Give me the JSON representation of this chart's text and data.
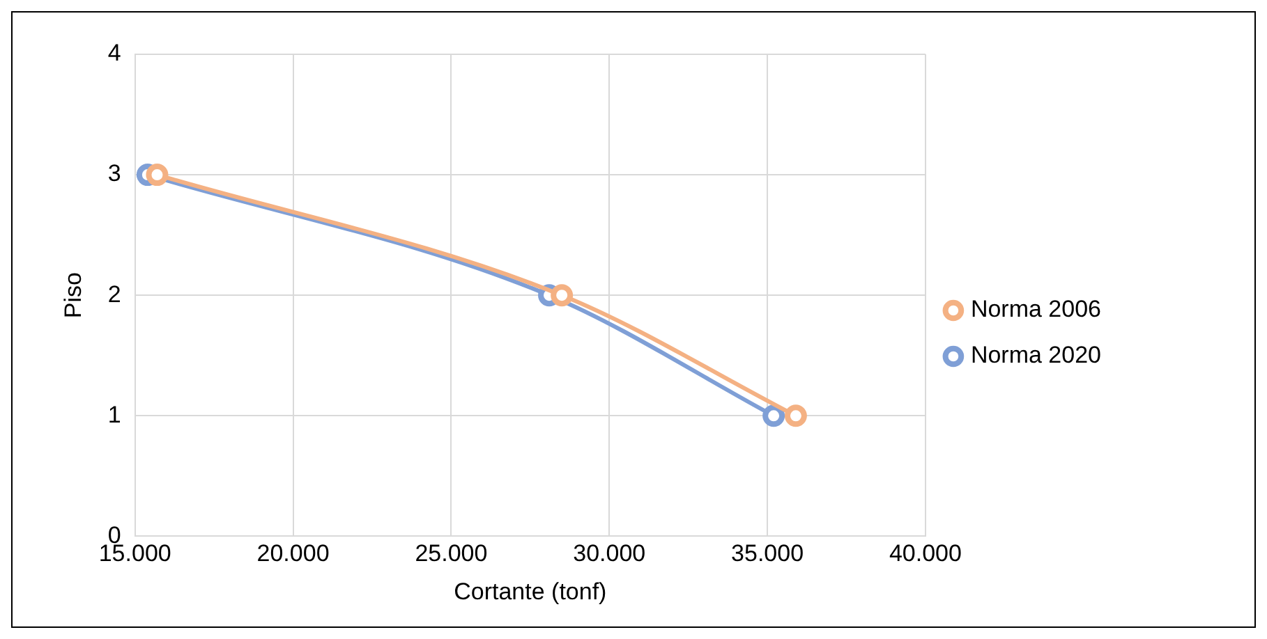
{
  "chart_data": {
    "type": "line",
    "xlabel": "Cortante (tonf)",
    "ylabel": "Piso",
    "series": [
      {
        "name": "Norma 2020",
        "color": "#7f9fd6",
        "x": [
          15400,
          28100,
          35200
        ],
        "values": [
          3,
          2,
          1
        ]
      },
      {
        "name": "Norma 2006",
        "color": "#f4b183",
        "x": [
          15700,
          28500,
          35900
        ],
        "values": [
          3,
          2,
          1
        ]
      }
    ],
    "xlim": [
      15000,
      40000
    ],
    "xticks": [
      {
        "value": 15000,
        "label": "15.000"
      },
      {
        "value": 20000,
        "label": "20.000"
      },
      {
        "value": 25000,
        "label": "25.000"
      },
      {
        "value": 30000,
        "label": "30.000"
      },
      {
        "value": 35000,
        "label": "35.000"
      },
      {
        "value": 40000,
        "label": "40.000"
      }
    ],
    "ylim": [
      0,
      4
    ],
    "yticks": [
      0,
      1,
      2,
      3,
      4
    ],
    "grid": true,
    "legend": "right",
    "marker": "circle",
    "line_style": "solid"
  }
}
